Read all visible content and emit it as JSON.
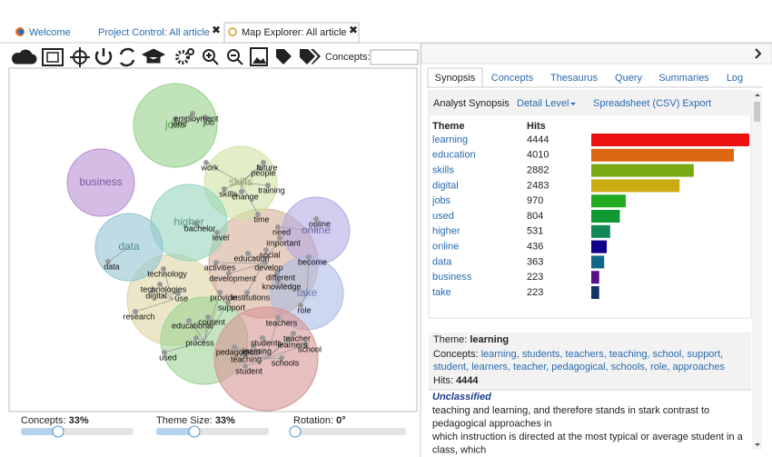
{
  "tabs": [
    "Welcome",
    "Project Control: All article",
    "Map Explorer: All article"
  ],
  "toolbar": {
    "concepts_label": "Concepts:"
  },
  "map": {
    "themes": [
      {
        "name": "jobs",
        "color": "#96d08a"
      },
      {
        "name": "business",
        "color": "#b890d4"
      },
      {
        "name": "skills",
        "color": "#cfe3a4"
      },
      {
        "name": "higher",
        "color": "#94d6bc"
      },
      {
        "name": "data",
        "color": "#94c4d4"
      },
      {
        "name": "online",
        "color": "#b4aae4"
      },
      {
        "name": "take",
        "color": "#acbce4"
      }
    ],
    "concepts": [
      "employment",
      "jobs",
      "job",
      "future",
      "people",
      "work",
      "training",
      "skills",
      "change",
      "bachelor",
      "level",
      "time",
      "online",
      "need",
      "important",
      "social",
      "education",
      "develop",
      "become",
      "different",
      "knowledge",
      "activities",
      "development",
      "technology",
      "technologies",
      "digital",
      "use",
      "provide",
      "institutions",
      "support",
      "role",
      "data",
      "research",
      "content",
      "educational",
      "teachers",
      "teacher",
      "students",
      "learners",
      "school",
      "learning",
      "pedagogical",
      "teaching",
      "schools",
      "student",
      "process",
      "used"
    ]
  },
  "sliders": [
    {
      "label": "Concepts:",
      "value": "33%"
    },
    {
      "label": "Theme Size:",
      "value": "33%"
    },
    {
      "label": "Rotation:",
      "value": "0°"
    }
  ],
  "panel": {
    "tabs": [
      "Synopsis",
      "Concepts",
      "Thesaurus",
      "Query",
      "Summaries",
      "Log"
    ],
    "toolbar": {
      "title": "Analyst Synopsis",
      "detail": "Detail Level",
      "export": "Spreadsheet (CSV) Export"
    },
    "table": {
      "headers": [
        "Theme",
        "Hits"
      ],
      "rows": [
        {
          "theme": "learning",
          "hits": 4444,
          "color": "#ee1111"
        },
        {
          "theme": "education",
          "hits": 4010,
          "color": "#dd6611"
        },
        {
          "theme": "skills",
          "hits": 2882,
          "color": "#77aa11"
        },
        {
          "theme": "digital",
          "hits": 2483,
          "color": "#ccaa11"
        },
        {
          "theme": "jobs",
          "hits": 970,
          "color": "#22aa22"
        },
        {
          "theme": "used",
          "hits": 804,
          "color": "#119933"
        },
        {
          "theme": "higher",
          "hits": 531,
          "color": "#118855"
        },
        {
          "theme": "online",
          "hits": 436,
          "color": "#110088"
        },
        {
          "theme": "data",
          "hits": 363,
          "color": "#116688"
        },
        {
          "theme": "business",
          "hits": 223,
          "color": "#551188"
        },
        {
          "theme": "take",
          "hits": 223,
          "color": "#113366"
        }
      ]
    },
    "details": {
      "theme_label": "Theme:",
      "theme": "learning",
      "concepts_label": "Concepts:",
      "concepts_lines": [
        "learning, students, teachers, teaching, school, support,",
        "student, learners, teacher, pedagogical, schools, role, approaches"
      ],
      "hits_label": "Hits:",
      "hits": 4444
    },
    "excerpt": {
      "heading": "Unclassified",
      "lines": [
        "teaching and learning, and therefore stands in stark contrast to",
        "pedagogical approaches in",
        "which instruction is directed at the most typical or average student in a",
        "class, which"
      ]
    }
  }
}
